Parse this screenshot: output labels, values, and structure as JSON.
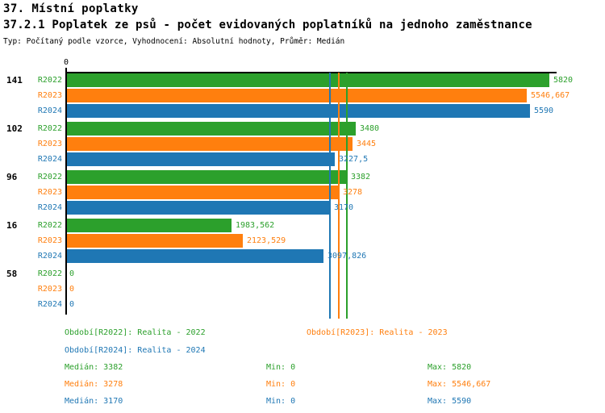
{
  "title": "37. Místní poplatky",
  "subtitle": "37.2.1 Poplatek ze psů - počet evidovaných poplatníků na jednoho zaměstnance",
  "meta": "Typ: Počítaný podle vzorce, Vyhodnocení: Absolutní hodnoty, Průměr: Medián",
  "colors": {
    "r2022": "#2ca02c",
    "r2023": "#ff7f0e",
    "r2024": "#1f77b4",
    "axis": "#000000"
  },
  "chart_data": {
    "type": "bar",
    "orientation": "horizontal",
    "grid": false,
    "xlim": [
      0,
      5820
    ],
    "axis_tick_label": "0",
    "series_names": [
      "R2022",
      "R2023",
      "R2024"
    ],
    "groups": [
      {
        "label": "141",
        "values": [
          5820,
          5546.667,
          5590
        ],
        "value_labels": [
          "5820",
          "5546,667",
          "5590"
        ]
      },
      {
        "label": "102",
        "values": [
          3480,
          3445,
          3227.5
        ],
        "value_labels": [
          "3480",
          "3445",
          "3227,5"
        ]
      },
      {
        "label": "96",
        "values": [
          3382,
          3278,
          3170
        ],
        "value_labels": [
          "3382",
          "3278",
          "3170"
        ]
      },
      {
        "label": "16",
        "values": [
          1983.562,
          2123.529,
          3097.826
        ],
        "value_labels": [
          "1983,562",
          "2123,529",
          "3097,826"
        ]
      },
      {
        "label": "58",
        "values": [
          0,
          0,
          0
        ],
        "value_labels": [
          "0",
          "0",
          "0"
        ]
      }
    ],
    "median_lines": [
      3382,
      3278,
      3170
    ],
    "legend": {
      "position": "bottom",
      "periods": [
        {
          "label": "Období[R2022]: Realita - 2022"
        },
        {
          "label": "Období[R2023]: Realita - 2023"
        },
        {
          "label": "Období[R2024]: Realita - 2024"
        }
      ],
      "stats": [
        {
          "median": "Medián: 3382",
          "min": "Min: 0",
          "max": "Max: 5820"
        },
        {
          "median": "Medián: 3278",
          "min": "Min: 0",
          "max": "Max: 5546,667"
        },
        {
          "median": "Medián: 3170",
          "min": "Min: 0",
          "max": "Max: 5590"
        }
      ]
    }
  }
}
